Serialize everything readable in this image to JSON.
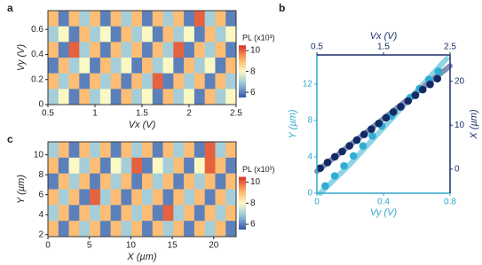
{
  "chart_data": [
    {
      "type": "heatmap",
      "panel": "a",
      "xlabel": "Vx (V)",
      "ylabel": "Vy (V)",
      "xlim": [
        0.5,
        2.5
      ],
      "xticks": [
        0.5,
        1,
        1.5,
        2,
        2.5
      ],
      "ylim": [
        0,
        0.75
      ],
      "yticks": [
        0,
        0.2,
        0.4,
        0.6
      ],
      "colorbar_label": "PL (x10³)",
      "clim": [
        5.5,
        10.5
      ],
      "cticks": [
        6,
        8,
        10
      ],
      "z": [
        [
          9,
          6,
          9,
          7,
          9,
          6,
          9,
          7,
          9,
          6,
          9,
          7,
          9,
          6,
          10,
          7,
          9,
          6
        ],
        [
          7,
          8,
          6,
          9,
          7,
          8,
          6,
          9,
          7,
          8,
          6,
          9,
          7,
          8,
          6,
          9,
          7,
          8
        ],
        [
          9,
          6,
          10,
          7,
          9,
          6,
          9,
          7,
          9,
          6,
          9,
          7,
          10,
          6,
          9,
          7,
          9,
          6
        ],
        [
          6,
          9,
          7,
          8,
          6,
          9,
          7,
          8,
          6,
          9,
          7,
          8,
          6,
          9,
          7,
          8,
          6,
          9
        ],
        [
          9,
          7,
          9,
          6,
          9,
          7,
          9,
          6,
          9,
          7,
          10,
          6,
          9,
          7,
          9,
          6,
          9,
          7
        ],
        [
          7,
          8,
          6,
          9,
          7,
          8,
          6,
          9,
          7,
          8,
          6,
          9,
          7,
          8,
          6,
          9,
          7,
          8
        ]
      ]
    },
    {
      "type": "scatter",
      "panel": "b",
      "xlabel": "Vy (V)",
      "ylabel": "Y (µm)",
      "x2label": "Vx (V)",
      "y2label": "X (µm)",
      "xlim": [
        0,
        0.8
      ],
      "xticks": [
        0,
        0.4,
        0.8
      ],
      "ylim": [
        0,
        15.2
      ],
      "yticks": [
        0,
        4,
        8,
        12
      ],
      "x2lim": [
        0.5,
        2.5
      ],
      "x2ticks": [
        0.5,
        1.5,
        2.5
      ],
      "y2lim": [
        -5.5,
        26
      ],
      "y2ticks": [
        0,
        10,
        20
      ],
      "fits": [
        {
          "color": "#8fd3e6",
          "x": [
            0.02,
            0.2,
            0.4,
            0.6,
            0.78
          ],
          "values": [
            0,
            3.2,
            7.2,
            11.2,
            14.8
          ]
        },
        {
          "color": "#8290b3",
          "axis": "y2",
          "x": [
            0.5,
            1.0,
            1.5,
            2.0,
            2.5
          ],
          "values": [
            -0.5,
            5.5,
            11.5,
            17.5,
            23.5
          ]
        }
      ],
      "series": [
        {
          "color": "#2eaed2",
          "x": [
            0.05,
            0.107,
            0.163,
            0.22,
            0.277,
            0.333,
            0.39,
            0.447,
            0.503,
            0.56,
            0.617,
            0.673,
            0.73
          ],
          "values": [
            0.8,
            1.9,
            3.0,
            4.1,
            5.2,
            6.3,
            7.4,
            8.5,
            9.5,
            10.5,
            11.5,
            12.5,
            13.4
          ]
        },
        {
          "color": "#142a66",
          "axis": "y2",
          "x": [
            0.55,
            0.66,
            0.77,
            0.88,
            0.99,
            1.1,
            1.21,
            1.32,
            1.43,
            1.54,
            1.65,
            1.76,
            1.87,
            1.98,
            2.09,
            2.2,
            2.31
          ],
          "values": [
            0.2,
            1.5,
            2.8,
            4.0,
            5.3,
            6.6,
            7.9,
            9.1,
            10.4,
            11.7,
            13.0,
            14.2,
            15.5,
            16.8,
            18.1,
            19.3,
            20.6
          ]
        }
      ]
    },
    {
      "type": "heatmap",
      "panel": "c",
      "xlabel": "X (µm)",
      "ylabel": "Y (µm)",
      "xlim": [
        0,
        22.7
      ],
      "xticks": [
        0,
        5,
        10,
        15,
        20
      ],
      "ylim": [
        1.8,
        11.3
      ],
      "yticks": [
        2,
        4,
        6,
        8,
        10
      ],
      "colorbar_label": "PL (x10³)",
      "clim": [
        5.5,
        10.5
      ],
      "cticks": [
        6,
        8,
        10
      ],
      "z": [
        [
          7,
          9,
          6,
          9,
          7,
          9,
          6,
          9,
          7,
          9,
          6,
          9,
          7,
          9,
          6,
          10,
          7,
          9
        ],
        [
          9,
          6,
          8,
          7,
          9,
          6,
          8,
          7,
          10,
          6,
          8,
          7,
          9,
          6,
          8,
          10,
          9,
          6
        ],
        [
          6,
          9,
          7,
          9,
          6,
          9,
          7,
          9,
          6,
          9,
          7,
          9,
          6,
          9,
          7,
          9,
          6,
          9
        ],
        [
          9,
          7,
          9,
          6,
          10,
          7,
          9,
          6,
          9,
          7,
          9,
          6,
          9,
          7,
          9,
          6,
          9,
          7
        ],
        [
          7,
          9,
          6,
          9,
          7,
          9,
          6,
          9,
          7,
          9,
          6,
          10,
          7,
          9,
          6,
          9,
          7,
          9
        ],
        [
          9,
          6,
          9,
          7,
          9,
          6,
          9,
          7,
          9,
          6,
          9,
          7,
          9,
          6,
          9,
          7,
          9,
          6
        ]
      ]
    }
  ]
}
